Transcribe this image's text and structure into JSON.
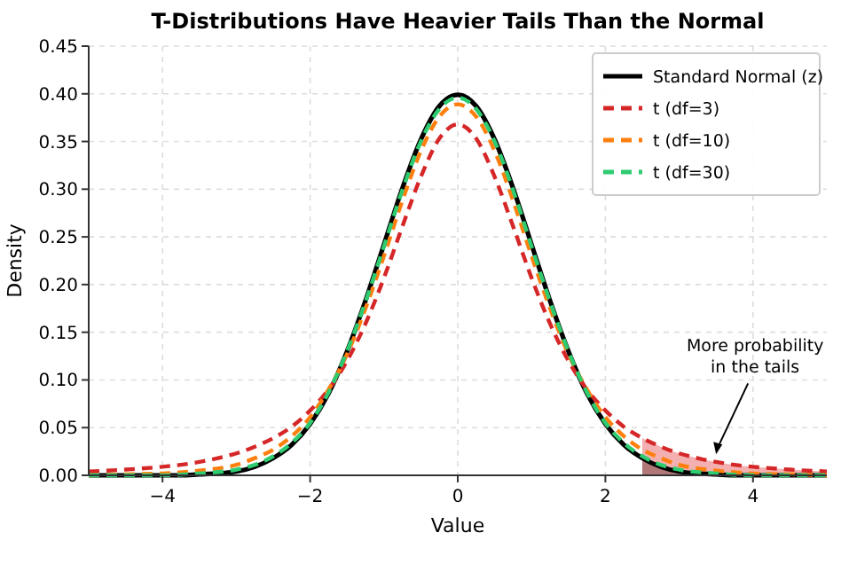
{
  "chart_data": {
    "type": "line",
    "title": "T-Distributions Have Heavier Tails Than the Normal",
    "xlabel": "Value",
    "ylabel": "Density",
    "xlim": [
      -5,
      5
    ],
    "xticks": [
      {
        "value": -4,
        "label": "−4"
      },
      {
        "value": -2,
        "label": "−2"
      },
      0,
      2,
      4
    ],
    "ylim": [
      0,
      0.45
    ],
    "yticks": [
      {
        "value": 0,
        "label": "0.00"
      },
      {
        "value": 0.05,
        "label": "0.05"
      },
      {
        "value": 0.1,
        "label": "0.10"
      },
      {
        "value": 0.15,
        "label": "0.15"
      },
      {
        "value": 0.2,
        "label": "0.20"
      },
      {
        "value": 0.25,
        "label": "0.25"
      },
      {
        "value": 0.3,
        "label": "0.30"
      },
      {
        "value": 0.35,
        "label": "0.35"
      },
      {
        "value": 0.4,
        "label": "0.40"
      },
      {
        "value": 0.45,
        "label": "0.45"
      }
    ],
    "grid": true,
    "legend": "top right",
    "annotations": [
      {
        "text": "More probability\nin the tails",
        "x": 3.5,
        "y": 0.022
      }
    ],
    "series": [
      {
        "type": "area",
        "color": "#f4b0b0",
        "x": [
          2.5,
          2.75,
          3,
          3.25,
          3.5,
          3.75,
          4,
          4.5,
          5
        ],
        "values": [
          0.039,
          0.03,
          0.023,
          0.018,
          0.014,
          0.011,
          0.009,
          0.006,
          0.004
        ]
      },
      {
        "type": "area",
        "color": "#b07878",
        "x": [
          2.5,
          2.75,
          3,
          3.25,
          3.5,
          3.75,
          4,
          4.5,
          5
        ],
        "values": [
          0.018,
          0.009,
          0.004,
          0.002,
          0.001,
          0,
          0,
          0,
          0
        ]
      },
      {
        "name": "Standard Normal (z)",
        "color": "#000000",
        "line_style": "solid",
        "x": [
          -5,
          -4.5,
          -4,
          -3.75,
          -3.5,
          -3.25,
          -3,
          -2.75,
          -2.5,
          -2.25,
          -2,
          -1.75,
          -1.5,
          -1.25,
          -1,
          -0.75,
          -0.5,
          -0.25,
          0,
          0.25,
          0.5,
          0.75,
          1,
          1.25,
          1.5,
          1.75,
          2,
          2.25,
          2.5,
          2.75,
          3,
          3.25,
          3.5,
          3.75,
          4,
          4.5,
          5
        ],
        "values": [
          0,
          0,
          0,
          0,
          0.001,
          0.002,
          0.004,
          0.009,
          0.018,
          0.032,
          0.054,
          0.086,
          0.13,
          0.183,
          0.242,
          0.301,
          0.352,
          0.387,
          0.399,
          0.387,
          0.352,
          0.301,
          0.242,
          0.183,
          0.13,
          0.086,
          0.054,
          0.032,
          0.018,
          0.009,
          0.004,
          0.002,
          0.001,
          0,
          0,
          0,
          0
        ]
      },
      {
        "name": "t (df=3)",
        "color": "#d62728",
        "line_style": "dashed",
        "x": [
          -5,
          -4.5,
          -4,
          -3.75,
          -3.5,
          -3.25,
          -3,
          -2.75,
          -2.5,
          -2.25,
          -2,
          -1.75,
          -1.5,
          -1.25,
          -1,
          -0.75,
          -0.5,
          -0.25,
          0,
          0.25,
          0.5,
          0.75,
          1,
          1.25,
          1.5,
          1.75,
          2,
          2.25,
          2.5,
          2.75,
          3,
          3.25,
          3.5,
          3.75,
          4,
          4.5,
          5
        ],
        "values": [
          0.004,
          0.006,
          0.009,
          0.011,
          0.014,
          0.018,
          0.023,
          0.03,
          0.039,
          0.051,
          0.068,
          0.09,
          0.12,
          0.159,
          0.207,
          0.261,
          0.313,
          0.353,
          0.368,
          0.353,
          0.313,
          0.261,
          0.207,
          0.159,
          0.12,
          0.09,
          0.068,
          0.051,
          0.039,
          0.03,
          0.023,
          0.018,
          0.014,
          0.011,
          0.009,
          0.006,
          0.004
        ]
      },
      {
        "name": "t (df=10)",
        "color": "#ff7f0e",
        "line_style": "dashed",
        "x": [
          -5,
          -4.5,
          -4,
          -3.5,
          -3,
          -2.75,
          -2.5,
          -2.25,
          -2,
          -1.75,
          -1.5,
          -1.25,
          -1,
          -0.75,
          -0.5,
          -0.25,
          0,
          0.25,
          0.5,
          0.75,
          1,
          1.25,
          1.5,
          1.75,
          2,
          2.25,
          2.5,
          2.75,
          3,
          3.5,
          4,
          4.5,
          5
        ],
        "values": [
          0,
          0.001,
          0.002,
          0.005,
          0.011,
          0.018,
          0.027,
          0.041,
          0.061,
          0.09,
          0.127,
          0.175,
          0.23,
          0.288,
          0.34,
          0.376,
          0.389,
          0.376,
          0.34,
          0.288,
          0.23,
          0.175,
          0.127,
          0.09,
          0.061,
          0.041,
          0.027,
          0.018,
          0.011,
          0.005,
          0.002,
          0.001,
          0
        ]
      },
      {
        "name": "t (df=30)",
        "color": "#2ecc71",
        "line_style": "dashed",
        "x": [
          -5,
          -4,
          -3.5,
          -3,
          -2.75,
          -2.5,
          -2.25,
          -2,
          -1.75,
          -1.5,
          -1.25,
          -1,
          -0.75,
          -0.5,
          -0.25,
          0,
          0.25,
          0.5,
          0.75,
          1,
          1.25,
          1.5,
          1.75,
          2,
          2.25,
          2.5,
          2.75,
          3,
          3.5,
          4,
          5
        ],
        "values": [
          0,
          0,
          0.002,
          0.006,
          0.011,
          0.02,
          0.034,
          0.055,
          0.087,
          0.13,
          0.182,
          0.24,
          0.299,
          0.35,
          0.384,
          0.396,
          0.384,
          0.35,
          0.299,
          0.24,
          0.182,
          0.13,
          0.087,
          0.055,
          0.034,
          0.02,
          0.011,
          0.006,
          0.002,
          0,
          0
        ]
      }
    ]
  }
}
